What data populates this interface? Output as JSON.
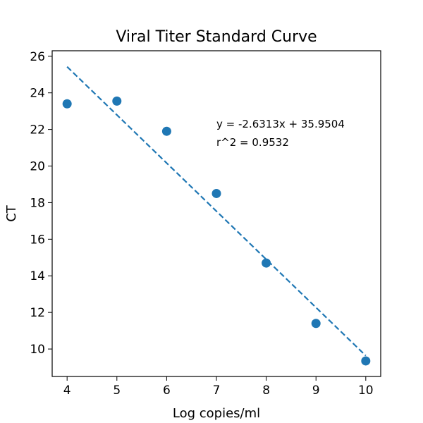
{
  "chart_data": {
    "type": "scatter",
    "title": "Viral Titer Standard Curve",
    "xlabel": "Log copies/ml",
    "ylabel": "CT",
    "xlim": [
      3.7,
      10.3
    ],
    "ylim": [
      8.5,
      26.3
    ],
    "xticks": [
      4,
      5,
      6,
      7,
      8,
      9,
      10
    ],
    "yticks": [
      10,
      12,
      14,
      16,
      18,
      20,
      22,
      24,
      26
    ],
    "grid": false,
    "series": [
      {
        "color": "#1f77b4",
        "points": [
          {
            "x": 4,
            "y": 23.4
          },
          {
            "x": 5,
            "y": 23.55
          },
          {
            "x": 6,
            "y": 21.9
          },
          {
            "x": 7,
            "y": 18.5
          },
          {
            "x": 8,
            "y": 14.7
          },
          {
            "x": 9,
            "y": 11.4
          },
          {
            "x": 10,
            "y": 9.35
          }
        ]
      }
    ],
    "fit": {
      "slope": -2.6313,
      "intercept": 35.9504,
      "x_range": [
        4,
        10
      ],
      "color": "#1f77b4",
      "style": "dashed"
    },
    "annotations": [
      "y = -2.6313x + 35.9504",
      "r^2 = 0.9532"
    ]
  }
}
